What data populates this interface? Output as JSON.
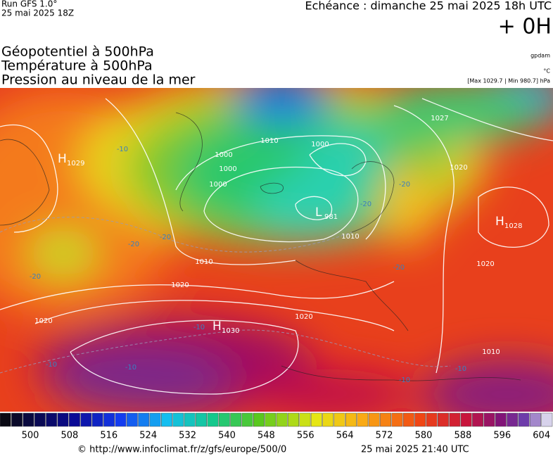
{
  "header": {
    "run": "Run GFS 1.0°",
    "run_date": "25 mai 2025 18Z",
    "forecast": "Echéance : dimanche 25 mai 2025 18h UTC",
    "offset": "+ 0H",
    "titles": [
      "Géopotentiel à 500hPa",
      "Température à 500hPa",
      "Pression au niveau de la mer"
    ],
    "units": [
      "gpdam",
      "°C",
      "[Max 1029.7 | Min 980.7] hPa"
    ]
  },
  "map": {
    "centers": [
      {
        "letter": "H",
        "value": "1029"
      },
      {
        "letter": "L",
        "value": "981"
      },
      {
        "letter": "H",
        "value": "1028"
      },
      {
        "letter": "H",
        "value": "1030"
      }
    ],
    "isobar_labels": [
      "1000",
      "1010",
      "1000",
      "1000",
      "1027",
      "1020",
      "1010",
      "1010",
      "1020",
      "1020",
      "1020",
      "1020",
      "1010",
      "1000"
    ],
    "temperature_labels": [
      "-10",
      "-20",
      "-20",
      "-20",
      "-20",
      "-20",
      "-20",
      "-10",
      "-10",
      "-10",
      "-10",
      "-10"
    ]
  },
  "colorbar": {
    "labels": [
      500,
      508,
      516,
      524,
      532,
      540,
      548,
      556,
      564,
      572,
      580,
      588,
      596,
      604
    ]
  },
  "footer": {
    "source": "© http://www.infoclimat.fr/z/gfs/europe/500/0",
    "generated": "25 mai 2025 21:40 UTC"
  }
}
